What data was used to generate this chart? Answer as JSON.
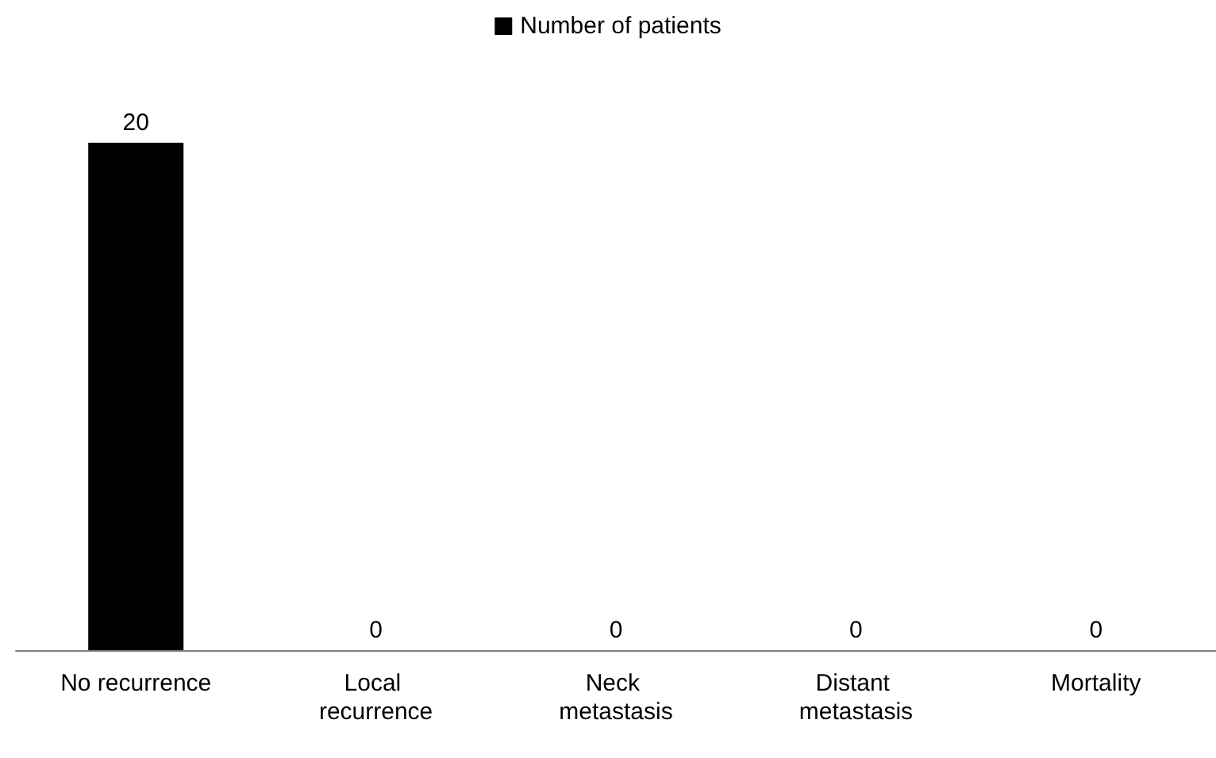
{
  "chart_data": {
    "type": "bar",
    "categories": [
      "No recurrence",
      "Local recurrence",
      "Neck metastasis",
      "Distant metastasis",
      "Mortality"
    ],
    "series": [
      {
        "name": "Number of patients",
        "color": "#000000",
        "values": [
          20,
          0,
          0,
          0,
          0
        ]
      }
    ],
    "data_labels": true,
    "legend": "top"
  }
}
